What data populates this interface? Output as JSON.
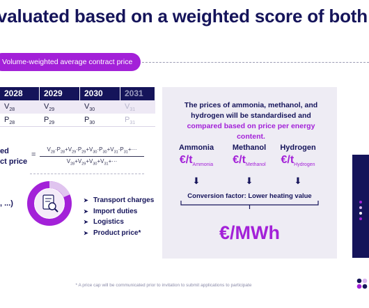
{
  "title": "valuated based on a weighted score of both pric",
  "pill_label": "Volume-weighted average contract price",
  "table": {
    "years": [
      "2028",
      "2029",
      "2030",
      "2031"
    ],
    "volume_row": [
      "V28",
      "V29",
      "V30",
      "V31"
    ],
    "price_row": [
      "P28",
      "P29",
      "P30",
      "P31"
    ]
  },
  "formula": {
    "label_line1": "ed",
    "label_line2": "ct price",
    "equals": "=",
    "numerator": "V28*P28+V29*P29+V30*P30+V31*P31+···",
    "denominator": "V28+V29+V30+V31+···"
  },
  "side_label": ", ...)",
  "cost_items": [
    "Transport charges",
    "Import duties",
    "Logistics",
    "Product price*"
  ],
  "panel": {
    "intro_a": "The prices of ammonia, methanol, and hydrogen will be standardised and ",
    "intro_highlight": "compared based on price per energy content.",
    "chemicals": [
      {
        "name": "Ammonia",
        "unit": "€/t",
        "sub": "Ammonia"
      },
      {
        "name": "Methanol",
        "unit": "€/t",
        "sub": "Methanol"
      },
      {
        "name": "Hydrogen",
        "unit": "€/t",
        "sub": "Hydrogen"
      }
    ],
    "conversion": "Conversion factor: Lower heating value",
    "result_unit": "€/MWh"
  },
  "footnote": "* A price cap will be communicated prior to invitation to submit applications to participate",
  "colors": {
    "navy": "#15145a",
    "purple": "#a321d8",
    "panel_bg": "#eeecf4"
  },
  "icons": [
    "document-magnifier-icon",
    "arrow-down-icon",
    "brand-logo-icon"
  ]
}
